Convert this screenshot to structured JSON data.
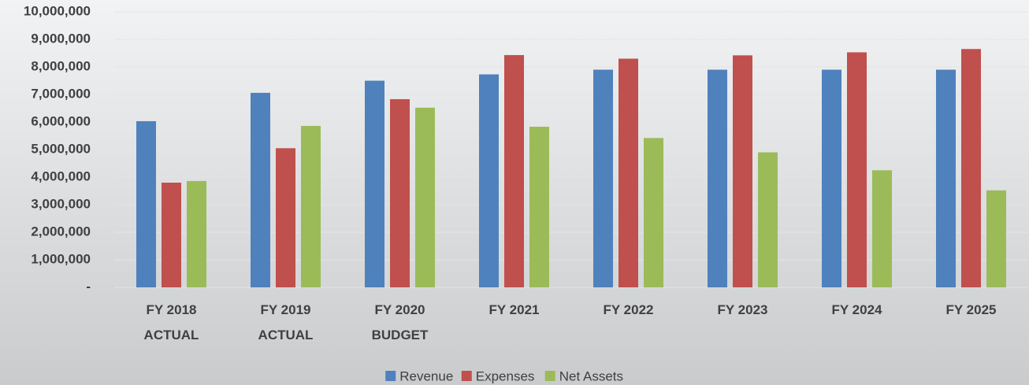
{
  "chart_data": {
    "type": "bar",
    "categories": [
      "FY 2018\nACTUAL",
      "FY 2019\nACTUAL",
      "FY 2020\nBUDGET",
      "FY 2021",
      "FY 2022",
      "FY 2023",
      "FY 2024",
      "FY 2025"
    ],
    "series": [
      {
        "name": "Revenue",
        "color": "#4f81bd",
        "values": [
          6030000,
          7060000,
          7500000,
          7730000,
          7900000,
          7900000,
          7900000,
          7900000
        ]
      },
      {
        "name": "Expenses",
        "color": "#c0504d",
        "values": [
          3800000,
          5050000,
          6830000,
          8430000,
          8300000,
          8420000,
          8530000,
          8650000
        ]
      },
      {
        "name": "Net Assets",
        "color": "#9bbb59",
        "values": [
          3860000,
          5860000,
          6520000,
          5830000,
          5420000,
          4900000,
          4250000,
          3520000
        ]
      }
    ],
    "ylim": [
      0,
      10000000
    ],
    "yticks": [
      {
        "value": 0,
        "label": "-"
      },
      {
        "value": 1000000,
        "label": "1,000,000"
      },
      {
        "value": 2000000,
        "label": "2,000,000"
      },
      {
        "value": 3000000,
        "label": "3,000,000"
      },
      {
        "value": 4000000,
        "label": "4,000,000"
      },
      {
        "value": 5000000,
        "label": "5,000,000"
      },
      {
        "value": 6000000,
        "label": "6,000,000"
      },
      {
        "value": 7000000,
        "label": "7,000,000"
      },
      {
        "value": 8000000,
        "label": "8,000,000"
      },
      {
        "value": 9000000,
        "label": "9,000,000"
      },
      {
        "value": 10000000,
        "label": "10,000,000"
      }
    ],
    "grid": true,
    "legend": "bottom"
  }
}
